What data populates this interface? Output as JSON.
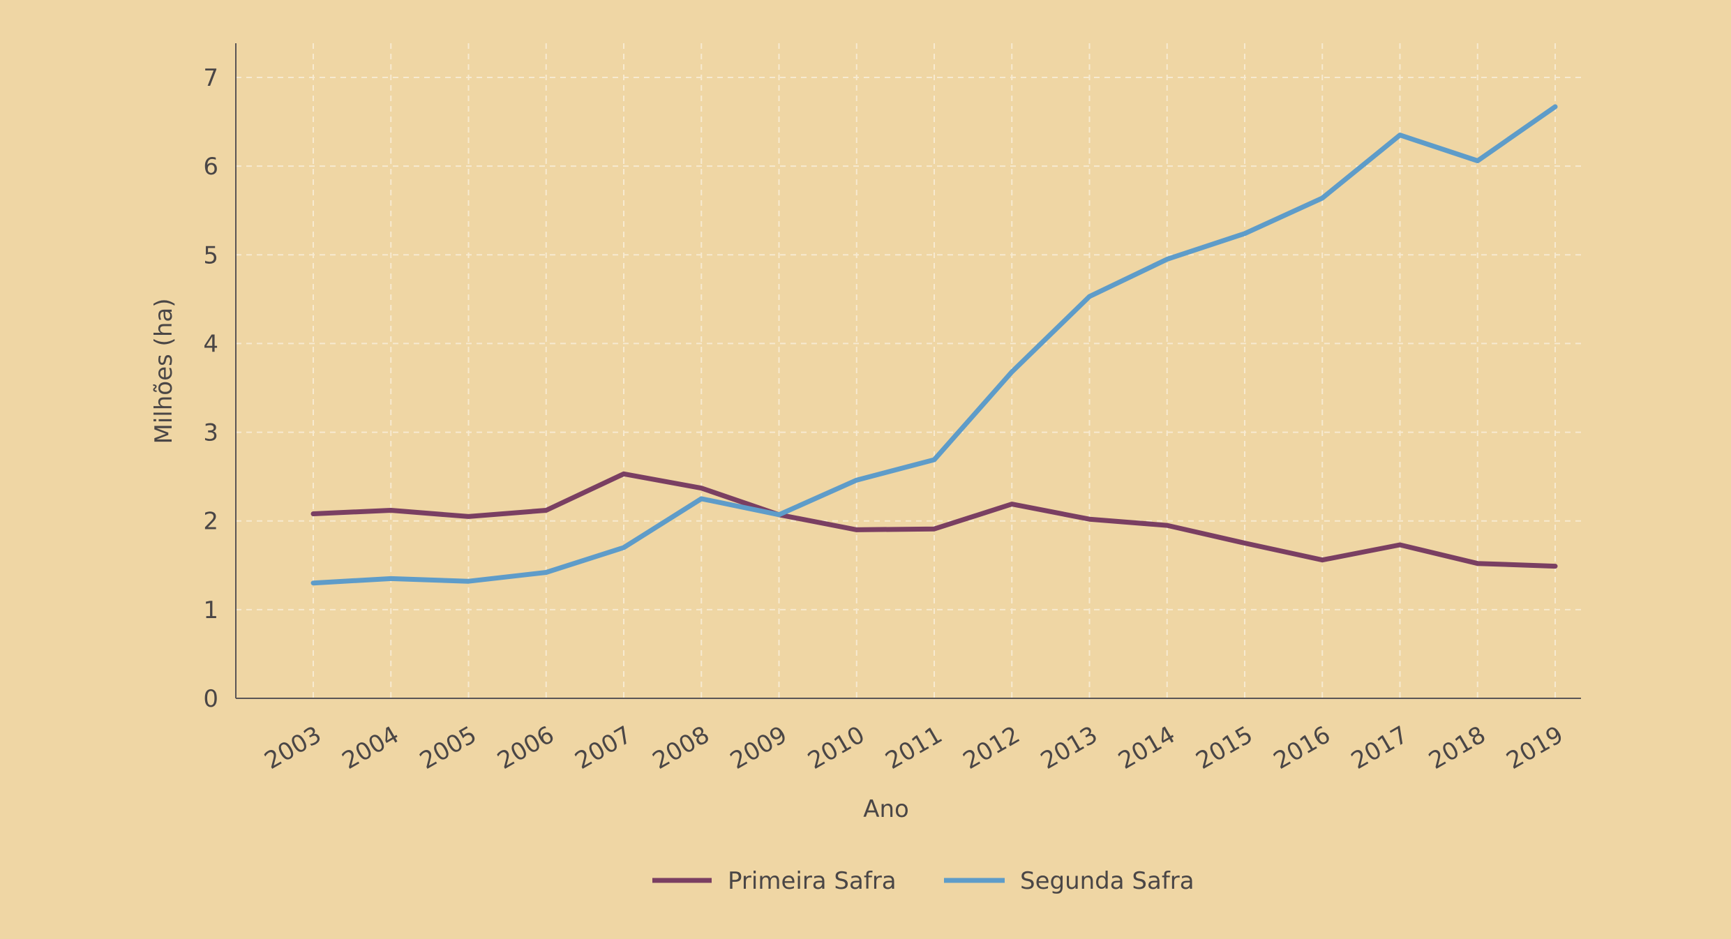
{
  "chart_data": {
    "type": "line",
    "title": "",
    "xlabel": "Ano",
    "ylabel": "Milhões (ha)",
    "categories": [
      "2003",
      "2004",
      "2005",
      "2006",
      "2007",
      "2008",
      "2009",
      "2010",
      "2011",
      "2012",
      "2013",
      "2014",
      "2015",
      "2016",
      "2017",
      "2018",
      "2019"
    ],
    "ylim": [
      0,
      7
    ],
    "yticks": [
      0,
      1,
      2,
      3,
      4,
      5,
      6,
      7
    ],
    "grid": true,
    "legend_position": "bottom",
    "series": [
      {
        "name": "Primeira Safra",
        "color": "#7a3f62",
        "values": [
          2.08,
          2.12,
          2.05,
          2.12,
          2.53,
          2.37,
          2.07,
          1.9,
          1.91,
          2.19,
          2.02,
          1.95,
          1.75,
          1.56,
          1.73,
          1.52,
          1.49
        ]
      },
      {
        "name": "Segunda Safra",
        "color": "#5e9cc9",
        "values": [
          1.3,
          1.35,
          1.32,
          1.42,
          1.7,
          2.25,
          2.07,
          2.46,
          2.69,
          3.68,
          4.53,
          4.95,
          5.24,
          5.64,
          6.35,
          6.06,
          6.67
        ]
      }
    ]
  }
}
